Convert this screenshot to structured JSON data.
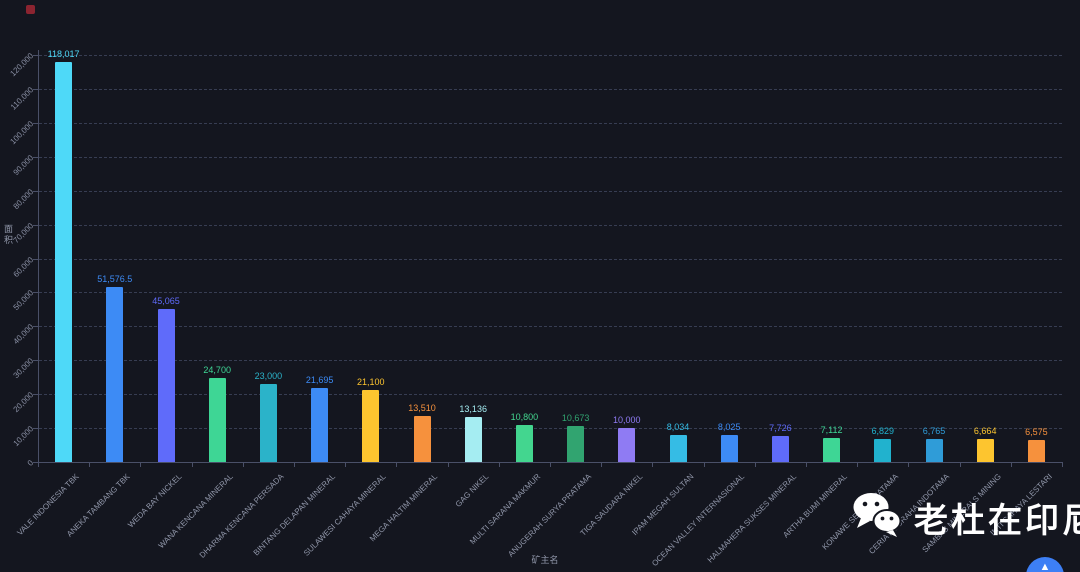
{
  "page": {
    "background": "#14161f"
  },
  "chart_data": {
    "type": "bar",
    "title": "",
    "xlabel": "矿主名",
    "ylabel": "面积",
    "ylim": [
      0,
      120000
    ],
    "ytick_step": 10000,
    "ytick_labels": [
      "0",
      "10,000",
      "20,000",
      "30,000",
      "40,000",
      "50,000",
      "60,000",
      "70,000",
      "80,000",
      "90,000",
      "100,000",
      "110,000",
      "120,000"
    ],
    "grid": "horizontal dashed",
    "legend": "none",
    "categories": [
      "VALE INDONESIA TBK",
      "ANEKA TAMBANG TBK",
      "WEDA BAY NICKEL",
      "WANA KENCANA MINERAL",
      "DHARMA KENCANA PERSADA",
      "BINTANG DELAPAN MINERAL",
      "SULAWESI CAHAYA MINERAL",
      "MEGA HALTIM MINERAL",
      "GAG NIKEL",
      "MULTI SARANA MAKMUR",
      "ANUGERAH SURYA PRATAMA",
      "TIGA SAUDARA NIKEL",
      "IPAM MEGAH SULTAN",
      "OCEAN VALLEY INTERNASIONAL",
      "HALMAHERA SUKSES MINERAL",
      "ARTHA BUMI MINERAL",
      "KONAWE SEJATI PRATAMA",
      "CERIA NUGRAHA INDOTAMA",
      "SAMBAS MINERALS MINING",
      "INTI CAHAYA LESTARI"
    ],
    "values": [
      118017,
      51576.5,
      45065,
      24700,
      23000,
      21695,
      21100,
      13510,
      13136,
      10800,
      10673,
      10000,
      8034,
      8025,
      7726,
      7112,
      6829,
      6765,
      6664,
      6575
    ],
    "value_labels": [
      "118,017",
      "51,576.5",
      "45,065",
      "24,700",
      "23,000",
      "21,695",
      "21,100",
      "13,510",
      "13,136",
      "10,800",
      "10,673",
      "10,000",
      "8,034",
      "8,025",
      "7,726",
      "7,112",
      "6,829",
      "6,765",
      "6,664",
      "6,575"
    ],
    "bar_colors": [
      "#4ed9f8",
      "#3d8bf5",
      "#5f6bfa",
      "#3ed695",
      "#2bb3c9",
      "#3d8bf5",
      "#fdc52f",
      "#f6913d",
      "#a5edf2",
      "#43d68f",
      "#31a470",
      "#8f7bf3",
      "#35bce5",
      "#3d8bf5",
      "#5f6bfa",
      "#3ed695",
      "#21b2ce",
      "#2f9cd8",
      "#fdc52f",
      "#f6913d"
    ]
  },
  "watermark": {
    "text": "老杜在印尼",
    "icon": "wechat-icon"
  },
  "accent_colors": {
    "fab_blue": "#3d7ff5",
    "marker_red": "#8c2430"
  }
}
